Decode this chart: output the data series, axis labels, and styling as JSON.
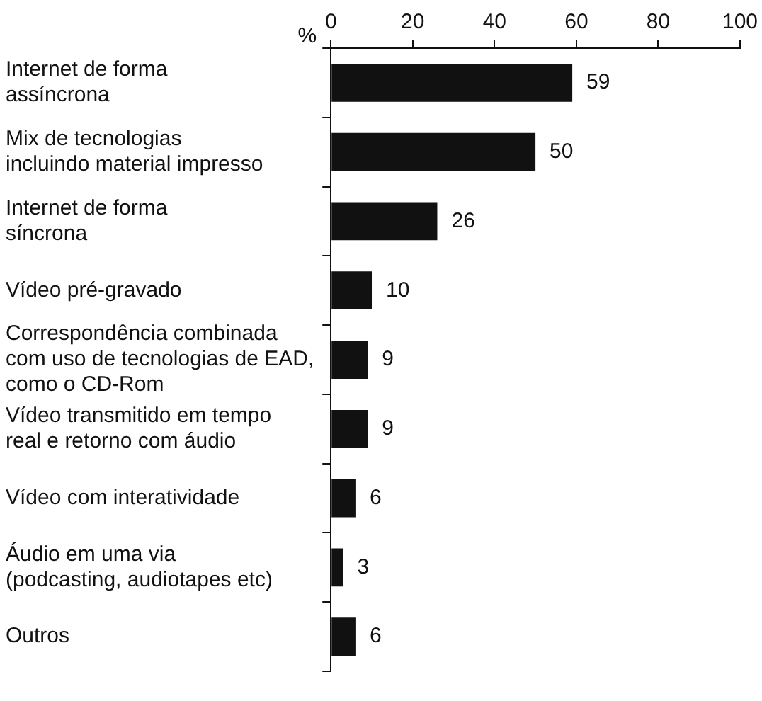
{
  "chart_data": {
    "type": "bar",
    "orientation": "horizontal",
    "xlabel": "%",
    "categories": [
      "Internet de forma\nassíncrona",
      "Mix de tecnologias\nincluindo material impresso",
      "Internet de forma\nsíncrona",
      "Vídeo pré-gravado",
      "Correspondência combinada\ncom uso de tecnologias de EAD,\ncomo o CD-Rom",
      "Vídeo transmitido em tempo\nreal e retorno com áudio",
      "Vídeo com interatividade",
      "Áudio em uma via\n(podcasting, audiotapes etc)",
      "Outros"
    ],
    "values": [
      59,
      50,
      26,
      10,
      9,
      9,
      6,
      3,
      6
    ],
    "color": "#111111",
    "xlim": [
      0,
      100
    ],
    "xticks": [
      0,
      20,
      40,
      60,
      80,
      100
    ],
    "grid": false,
    "legend": false,
    "data_labels": true
  }
}
